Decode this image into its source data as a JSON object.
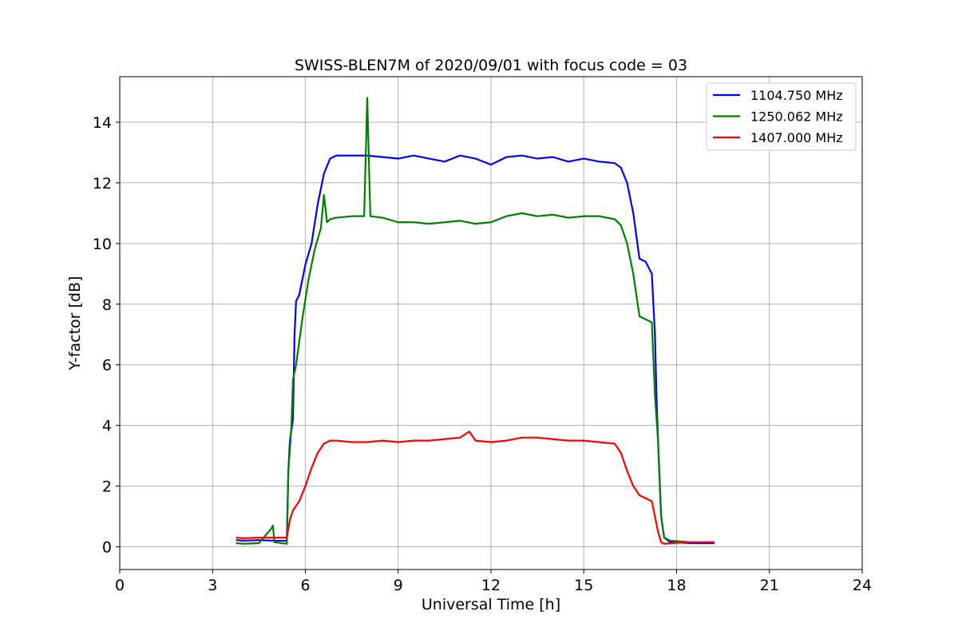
{
  "chart_data": {
    "type": "line",
    "title": "SWISS-BLEN7M of 2020/09/01 with focus code = 03",
    "xlabel": "Universal Time [h]",
    "ylabel": "Y-factor [dB]",
    "xlim": [
      0,
      24
    ],
    "ylim": [
      -0.75,
      15.5
    ],
    "xticks": [
      0,
      3,
      6,
      9,
      12,
      15,
      18,
      21,
      24
    ],
    "yticks": [
      0,
      2,
      4,
      6,
      8,
      10,
      12,
      14
    ],
    "grid": true,
    "legend_position": "top-right",
    "series": [
      {
        "name": "1104.750 MHz",
        "color": "#0000ff",
        "x": [
          3.78,
          4.0,
          4.5,
          5.0,
          5.4,
          5.45,
          5.5,
          5.6,
          5.65,
          5.7,
          5.8,
          6.0,
          6.2,
          6.4,
          6.6,
          6.8,
          7.0,
          7.5,
          8.0,
          8.5,
          9.0,
          9.5,
          10.0,
          10.5,
          11.0,
          11.5,
          12.0,
          12.5,
          13.0,
          13.5,
          14.0,
          14.5,
          15.0,
          15.5,
          16.0,
          16.2,
          16.4,
          16.6,
          16.8,
          17.0,
          17.2,
          17.3,
          17.35,
          17.4,
          17.5,
          17.6,
          17.8,
          18.5,
          19.2
        ],
        "y": [
          0.22,
          0.2,
          0.22,
          0.2,
          0.2,
          2.5,
          3.5,
          4.2,
          7.0,
          8.1,
          8.3,
          9.3,
          10.0,
          11.3,
          12.3,
          12.8,
          12.9,
          12.9,
          12.9,
          12.85,
          12.8,
          12.9,
          12.8,
          12.7,
          12.9,
          12.8,
          12.6,
          12.85,
          12.9,
          12.8,
          12.85,
          12.7,
          12.8,
          12.7,
          12.65,
          12.5,
          12.0,
          11.0,
          9.5,
          9.4,
          9.0,
          7.0,
          5.0,
          3.5,
          1.0,
          0.3,
          0.15,
          0.12,
          0.12
        ]
      },
      {
        "name": "1250.062 MHz",
        "color": "#008000",
        "x": [
          3.78,
          4.0,
          4.5,
          4.9,
          4.95,
          5.0,
          5.4,
          5.45,
          5.5,
          5.55,
          5.6,
          5.7,
          5.9,
          6.1,
          6.3,
          6.5,
          6.6,
          6.7,
          6.8,
          7.0,
          7.5,
          7.9,
          8.0,
          8.1,
          8.5,
          9.0,
          9.5,
          10.0,
          10.5,
          11.0,
          11.5,
          12.0,
          12.5,
          13.0,
          13.5,
          14.0,
          14.5,
          15.0,
          15.5,
          16.0,
          16.2,
          16.4,
          16.6,
          16.8,
          17.0,
          17.2,
          17.3,
          17.4,
          17.5,
          17.6,
          17.8,
          18.5,
          19.2
        ],
        "y": [
          0.12,
          0.1,
          0.12,
          0.6,
          0.7,
          0.15,
          0.1,
          2.5,
          3.2,
          4.0,
          5.5,
          6.0,
          7.5,
          8.8,
          9.8,
          10.5,
          11.6,
          10.7,
          10.8,
          10.85,
          10.9,
          10.9,
          14.8,
          10.9,
          10.85,
          10.7,
          10.7,
          10.65,
          10.7,
          10.75,
          10.65,
          10.7,
          10.9,
          11.0,
          10.9,
          10.95,
          10.85,
          10.9,
          10.9,
          10.8,
          10.6,
          10.0,
          9.0,
          7.6,
          7.5,
          7.4,
          5.0,
          3.5,
          1.0,
          0.3,
          0.2,
          0.15,
          0.15
        ]
      },
      {
        "name": "1407.000 MHz",
        "color": "#ff0000",
        "x": [
          3.78,
          4.0,
          4.5,
          5.0,
          5.4,
          5.5,
          5.6,
          5.8,
          6.0,
          6.2,
          6.4,
          6.6,
          6.8,
          7.0,
          7.5,
          8.0,
          8.5,
          9.0,
          9.5,
          10.0,
          10.5,
          11.0,
          11.3,
          11.5,
          12.0,
          12.5,
          13.0,
          13.5,
          14.0,
          14.5,
          15.0,
          15.5,
          16.0,
          16.2,
          16.4,
          16.6,
          16.8,
          17.0,
          17.2,
          17.3,
          17.4,
          17.5,
          17.6,
          17.8,
          18.5,
          19.2
        ],
        "y": [
          0.3,
          0.28,
          0.3,
          0.3,
          0.3,
          0.9,
          1.2,
          1.5,
          2.0,
          2.6,
          3.1,
          3.4,
          3.5,
          3.5,
          3.45,
          3.45,
          3.5,
          3.45,
          3.5,
          3.5,
          3.55,
          3.6,
          3.8,
          3.5,
          3.45,
          3.5,
          3.6,
          3.6,
          3.55,
          3.5,
          3.5,
          3.45,
          3.4,
          3.1,
          2.5,
          2.0,
          1.7,
          1.6,
          1.5,
          1.0,
          0.5,
          0.15,
          0.1,
          0.12,
          0.15,
          0.15
        ]
      }
    ]
  }
}
